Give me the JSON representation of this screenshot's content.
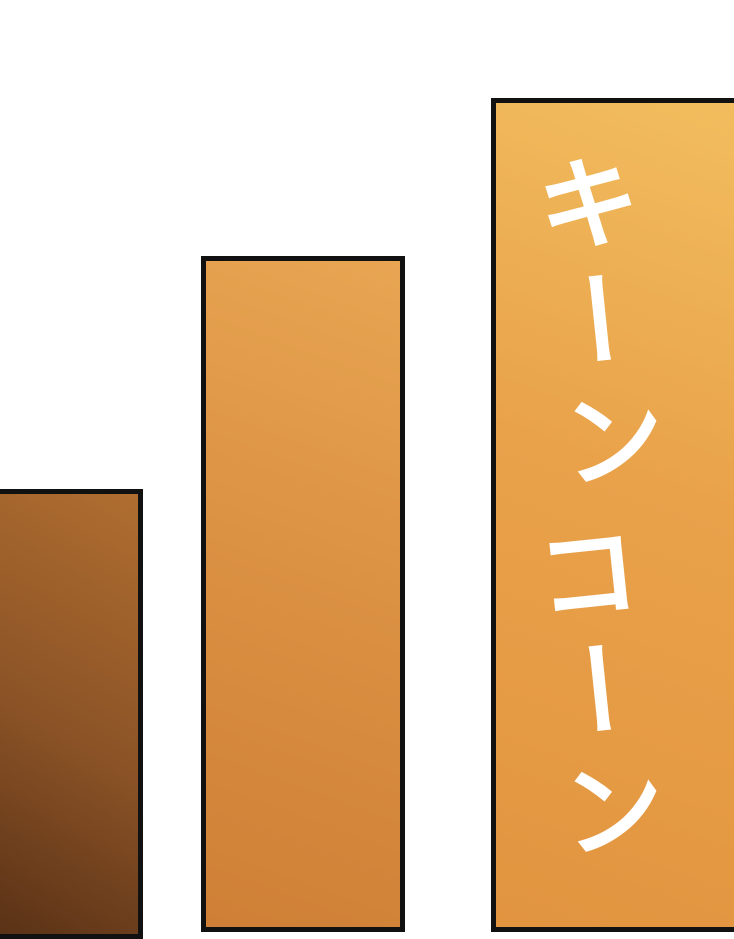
{
  "sound_effect": {
    "lines": [
      "キーン",
      "コーン"
    ]
  }
}
